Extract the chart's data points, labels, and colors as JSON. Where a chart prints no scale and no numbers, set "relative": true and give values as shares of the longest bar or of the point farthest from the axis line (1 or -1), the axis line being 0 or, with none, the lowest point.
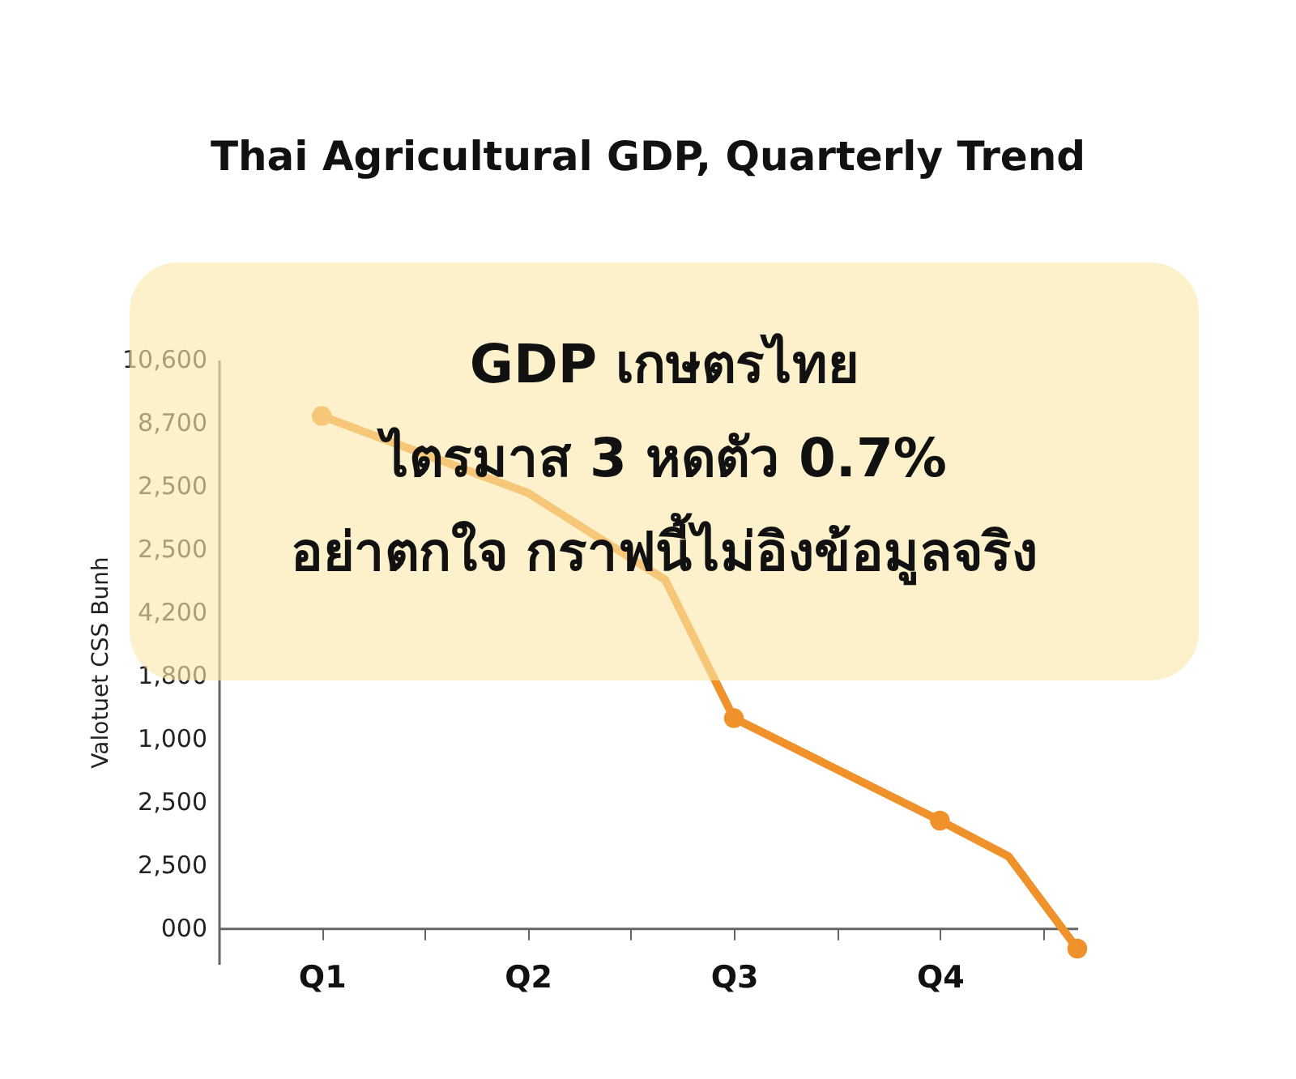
{
  "chart_data": {
    "type": "line",
    "relative": true,
    "title": "Thai Agricultural GDP, Quarterly Trend",
    "ylabel": "Valotuet CSS Bunh",
    "annotations": [
      "GDP เกษตรไทย",
      "ไตรมาส 3 หดตัว 0.7%",
      "อย่าตกใจ กราฟนี้ไม่อิงข้อมูลจริง",
      "000",
      "2,500",
      "2,500",
      "1,000",
      "1,800",
      "4,200",
      "2,500",
      "2,500",
      "8,700",
      "10,600"
    ],
    "categories": [
      null,
      null,
      null,
      "Q1",
      null,
      null,
      null,
      null,
      null,
      "Q2",
      null,
      null,
      null,
      null,
      null,
      "Q3",
      null,
      null,
      null,
      null,
      null,
      "Q4",
      null,
      null,
      null,
      null
    ],
    "series": [
      {
        "color": "#f0922b",
        "marker": "none",
        "values": [
          null,
          null,
          null,
          1,
          null,
          null,
          null,
          null,
          null,
          0.85,
          null,
          null,
          null,
          0.68,
          null,
          0.41,
          null,
          null,
          null,
          null,
          null,
          0.21,
          null,
          0.14,
          null,
          -0.04
        ]
      },
      {
        "type": "scatter",
        "color": "#f0922b",
        "marker": "circle",
        "values": [
          null,
          null,
          null,
          1,
          null,
          null,
          null,
          null,
          null,
          null,
          null,
          null,
          null,
          null,
          null,
          0.41,
          null,
          null,
          null,
          null,
          null,
          0.21,
          null,
          null,
          null,
          -0.04
        ]
      }
    ]
  }
}
